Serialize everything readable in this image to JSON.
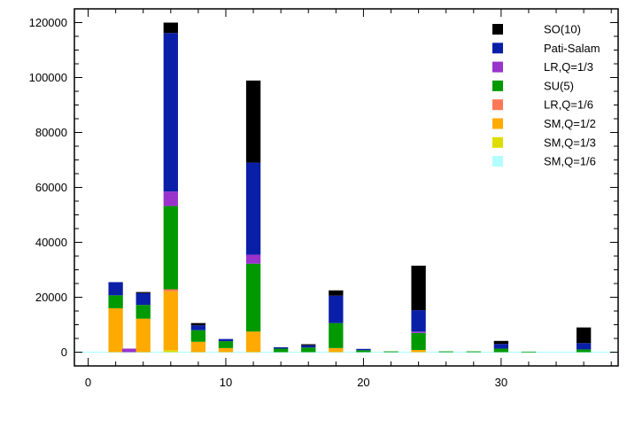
{
  "chart_data": {
    "type": "bar",
    "stacked": true,
    "x": [
      2,
      3,
      4,
      6,
      8,
      9,
      10,
      12,
      14,
      16,
      18,
      20,
      22,
      24,
      26,
      28,
      30,
      32,
      34,
      36
    ],
    "xlim": [
      -1,
      38.5
    ],
    "ylim": [
      -5000,
      125000
    ],
    "xticks": [
      0,
      10,
      20,
      30
    ],
    "yticks": [
      0,
      20000,
      40000,
      60000,
      80000,
      100000,
      120000
    ],
    "grid": false,
    "legend_position": "top-right",
    "series": [
      {
        "name": "SM,Q=1/6",
        "color": "#b3ffff",
        "values": [
          0,
          0,
          0,
          0,
          0,
          0,
          0,
          0,
          0,
          0,
          0,
          0,
          0,
          0,
          0,
          0,
          0,
          0,
          0,
          0
        ]
      },
      {
        "name": "SM,Q=1/3",
        "color": "#dddd00",
        "values": [
          0,
          0,
          0,
          700,
          0,
          0,
          0,
          0,
          0,
          0,
          0,
          0,
          0,
          0,
          0,
          0,
          0,
          0,
          0,
          0
        ]
      },
      {
        "name": "SM,Q=1/2",
        "color": "#ffaa00",
        "values": [
          16000,
          0,
          12200,
          21500,
          3800,
          0,
          1500,
          7500,
          0,
          0,
          1500,
          0,
          0,
          800,
          0,
          0,
          0,
          0,
          0,
          0
        ]
      },
      {
        "name": "LR,Q=1/6",
        "color": "#ff7755",
        "values": [
          0,
          0,
          0,
          700,
          0,
          0,
          0,
          0,
          0,
          0,
          0,
          0,
          0,
          0,
          0,
          0,
          0,
          0,
          0,
          0
        ]
      },
      {
        "name": "SU(5)",
        "color": "#009900",
        "values": [
          4700,
          0,
          5000,
          30300,
          4200,
          0,
          2500,
          24700,
          1300,
          1700,
          9100,
          700,
          300,
          6200,
          300,
          300,
          1300,
          200,
          0,
          1000
        ]
      },
      {
        "name": "LR,Q=1/3",
        "color": "#9933cc",
        "values": [
          0,
          1300,
          0,
          5300,
          0,
          0,
          0,
          3300,
          0,
          0,
          0,
          0,
          0,
          500,
          0,
          0,
          0,
          0,
          0,
          0
        ]
      },
      {
        "name": "Pati-Salam",
        "color": "#0a1fa8",
        "values": [
          4800,
          0,
          4300,
          57700,
          1800,
          0,
          800,
          33500,
          500,
          800,
          10000,
          500,
          0,
          7800,
          0,
          0,
          1700,
          0,
          0,
          2300
        ]
      },
      {
        "name": "SO(10)",
        "color": "#000000",
        "values": [
          0,
          0,
          400,
          3800,
          800,
          0,
          0,
          29900,
          0,
          400,
          1900,
          0,
          0,
          16200,
          0,
          0,
          1100,
          0,
          0,
          5700
        ]
      }
    ]
  }
}
